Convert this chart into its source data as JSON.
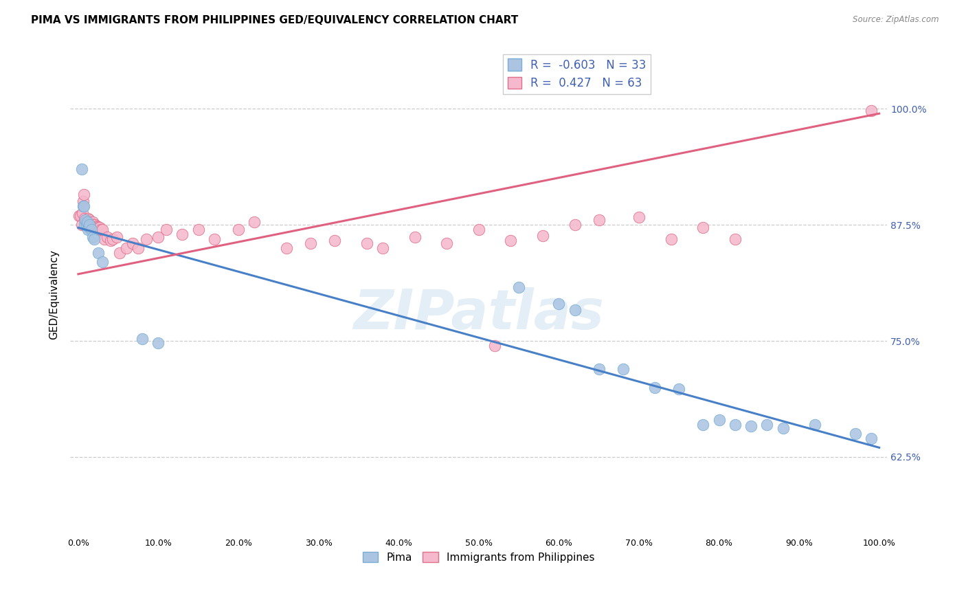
{
  "title": "PIMA VS IMMIGRANTS FROM PHILIPPINES GED/EQUIVALENCY CORRELATION CHART",
  "source": "Source: ZipAtlas.com",
  "ylabel": "GED/Equivalency",
  "ytick_labels": [
    "62.5%",
    "75.0%",
    "87.5%",
    "100.0%"
  ],
  "ytick_values": [
    0.625,
    0.75,
    0.875,
    1.0
  ],
  "xlim": [
    -0.01,
    1.01
  ],
  "ylim": [
    0.54,
    1.06
  ],
  "pima_color": "#aac4e2",
  "pima_edge_color": "#7aaed4",
  "philippines_color": "#f5b8cc",
  "philippines_edge_color": "#e0708c",
  "pima_R": -0.603,
  "pima_N": 33,
  "philippines_R": 0.427,
  "philippines_N": 63,
  "pima_line_color": "#4880c8",
  "philippines_line_color": "#e06080",
  "watermark": "ZIPatlas",
  "legend_R_color": "#4060b0",
  "pima_line_x0": 0.0,
  "pima_line_y0": 0.872,
  "pima_line_x1": 1.0,
  "pima_line_y1": 0.635,
  "phil_line_x0": 0.0,
  "phil_line_y0": 0.822,
  "phil_line_x1": 1.0,
  "phil_line_y1": 0.995,
  "pima_scatter_x": [
    0.004,
    0.006,
    0.007,
    0.008,
    0.009,
    0.01,
    0.011,
    0.012,
    0.013,
    0.014,
    0.016,
    0.018,
    0.02,
    0.025,
    0.03,
    0.08,
    0.1,
    0.55,
    0.6,
    0.62,
    0.65,
    0.68,
    0.72,
    0.75,
    0.78,
    0.8,
    0.82,
    0.84,
    0.86,
    0.88,
    0.92,
    0.97,
    0.99
  ],
  "pima_scatter_y": [
    0.935,
    0.895,
    0.895,
    0.875,
    0.88,
    0.875,
    0.878,
    0.87,
    0.873,
    0.875,
    0.87,
    0.862,
    0.86,
    0.845,
    0.835,
    0.752,
    0.748,
    0.808,
    0.79,
    0.783,
    0.72,
    0.72,
    0.7,
    0.698,
    0.66,
    0.665,
    0.66,
    0.658,
    0.66,
    0.656,
    0.66,
    0.65,
    0.645
  ],
  "philippines_scatter_x": [
    0.001,
    0.003,
    0.004,
    0.005,
    0.006,
    0.007,
    0.008,
    0.009,
    0.01,
    0.011,
    0.012,
    0.013,
    0.014,
    0.015,
    0.016,
    0.017,
    0.018,
    0.019,
    0.02,
    0.021,
    0.022,
    0.023,
    0.024,
    0.025,
    0.026,
    0.027,
    0.028,
    0.03,
    0.033,
    0.036,
    0.04,
    0.043,
    0.048,
    0.052,
    0.06,
    0.068,
    0.075,
    0.085,
    0.1,
    0.11,
    0.13,
    0.15,
    0.17,
    0.2,
    0.22,
    0.26,
    0.29,
    0.32,
    0.36,
    0.38,
    0.42,
    0.46,
    0.5,
    0.54,
    0.58,
    0.62,
    0.65,
    0.7,
    0.74,
    0.78,
    0.82,
    0.52,
    0.99
  ],
  "philippines_scatter_y": [
    0.885,
    0.885,
    0.875,
    0.888,
    0.9,
    0.908,
    0.882,
    0.878,
    0.878,
    0.876,
    0.882,
    0.874,
    0.88,
    0.878,
    0.875,
    0.876,
    0.878,
    0.875,
    0.873,
    0.875,
    0.872,
    0.874,
    0.873,
    0.872,
    0.87,
    0.872,
    0.87,
    0.87,
    0.86,
    0.862,
    0.858,
    0.86,
    0.862,
    0.845,
    0.85,
    0.855,
    0.85,
    0.86,
    0.862,
    0.87,
    0.865,
    0.87,
    0.86,
    0.87,
    0.878,
    0.85,
    0.855,
    0.858,
    0.855,
    0.85,
    0.862,
    0.855,
    0.87,
    0.858,
    0.863,
    0.875,
    0.88,
    0.883,
    0.86,
    0.872,
    0.86,
    0.745,
    0.998
  ],
  "background_color": "#ffffff",
  "grid_color": "#cccccc",
  "title_fontsize": 11,
  "axis_fontsize": 9,
  "legend_fontsize": 11
}
